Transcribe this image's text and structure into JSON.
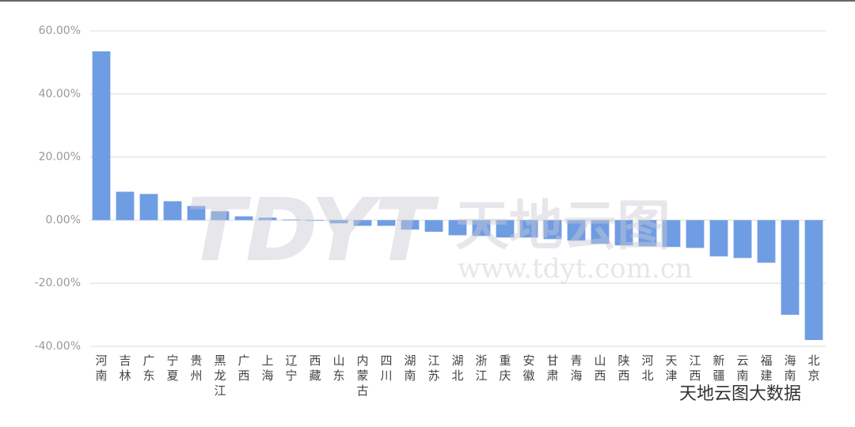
{
  "chart_data": {
    "type": "bar",
    "categories": [
      "河南",
      "吉林",
      "广东",
      "宁夏",
      "贵州",
      "黑龙江",
      "广西",
      "上海",
      "辽宁",
      "西藏",
      "山东",
      "内蒙古",
      "四川",
      "湖南",
      "江苏",
      "湖北",
      "浙江",
      "重庆",
      "安徽",
      "甘肃",
      "青海",
      "山西",
      "陕西",
      "河北",
      "天津",
      "江西",
      "新疆",
      "云南",
      "福建",
      "海南",
      "北京"
    ],
    "values": [
      53.5,
      9,
      8.3,
      6,
      4.5,
      2.8,
      1.2,
      0.8,
      0.2,
      -0.2,
      -1,
      -1.8,
      -1.8,
      -3,
      -3.7,
      -4.8,
      -5,
      -5.5,
      -5.5,
      -6,
      -6.5,
      -7.5,
      -8,
      -8.3,
      -8.5,
      -8.8,
      -11.5,
      -12,
      -13.5,
      -30,
      -38
    ],
    "color": "#6f9de3",
    "ylim": [
      -40,
      60
    ],
    "yticks": [
      {
        "value": 60,
        "label": "60.00%"
      },
      {
        "value": 40,
        "label": "40.00%"
      },
      {
        "value": 20,
        "label": "20.00%"
      },
      {
        "value": 0,
        "label": "0.00%"
      },
      {
        "value": -20,
        "label": "-20.00%"
      },
      {
        "value": -40,
        "label": "-40.00%"
      }
    ],
    "grid": true,
    "watermark": {
      "logo": "TDYT",
      "name": "天地云图",
      "url": "www.tdyt.com.cn",
      "account": "天地云图大数据"
    }
  }
}
